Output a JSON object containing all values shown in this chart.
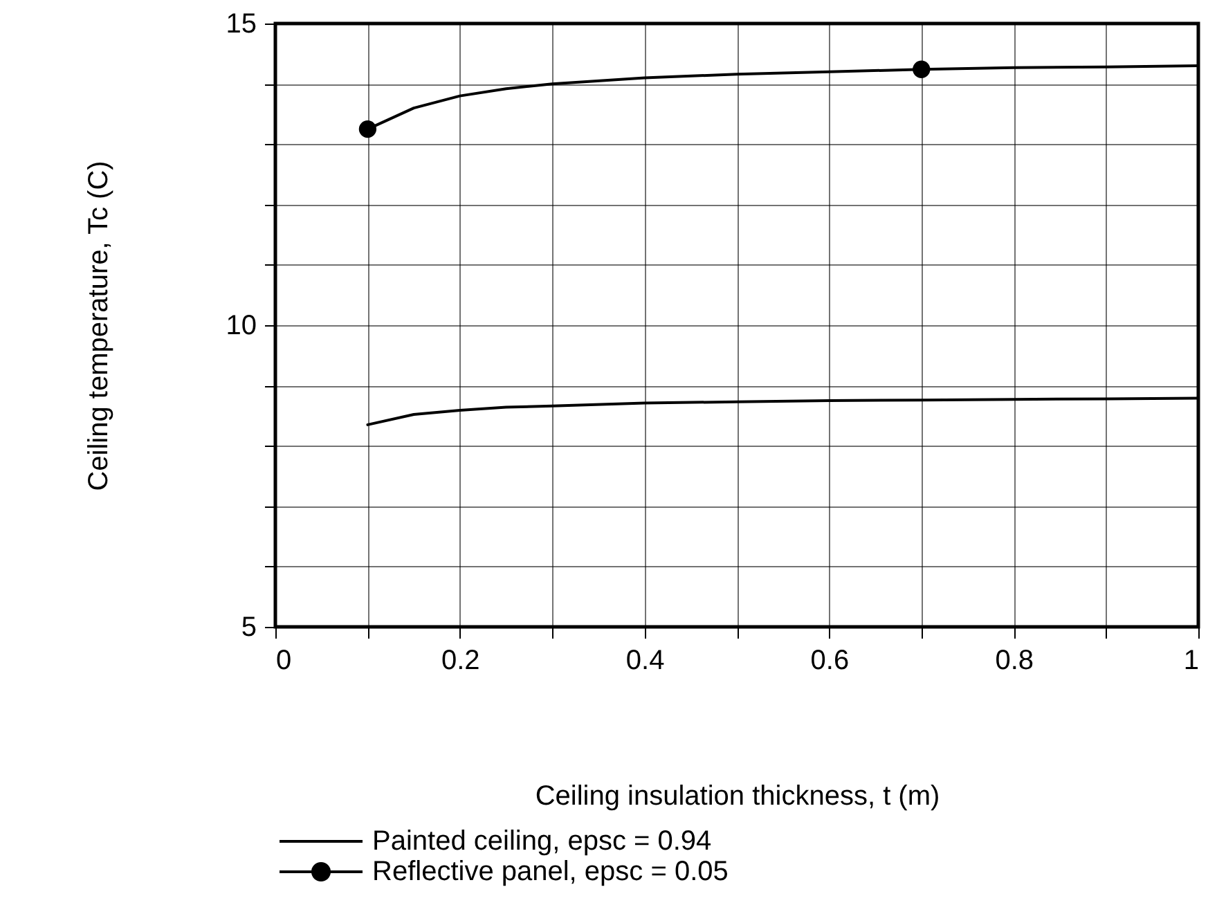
{
  "chart_data": {
    "type": "line",
    "xlabel": "Ceiling insulation thickness, t (m)",
    "ylabel": "Ceiling temperature, Tc (C)",
    "xlim": [
      0,
      1
    ],
    "ylim": [
      5,
      15
    ],
    "xticks": [
      0,
      {
        "value": 0.1,
        "label": null
      },
      0.2,
      {
        "value": 0.3,
        "label": null
      },
      0.4,
      {
        "value": 0.5,
        "label": null
      },
      0.6,
      {
        "value": 0.7,
        "label": null
      },
      0.8,
      {
        "value": 0.9,
        "label": null
      },
      1
    ],
    "yticks": [
      5,
      {
        "value": 6,
        "label": null
      },
      {
        "value": 7,
        "label": null
      },
      {
        "value": 8,
        "label": null
      },
      {
        "value": 9,
        "label": null
      },
      10,
      {
        "value": 11,
        "label": null
      },
      {
        "value": 12,
        "label": null
      },
      {
        "value": 13,
        "label": null
      },
      {
        "value": 14,
        "label": null
      },
      15
    ],
    "grid": true,
    "legend": "bottom left",
    "x": [
      0.1,
      0.15,
      0.2,
      0.25,
      0.3,
      0.4,
      0.5,
      0.6,
      0.7,
      0.8,
      0.9,
      1.0
    ],
    "series": [
      {
        "name": "Painted ceiling, epsc = 0.94",
        "color": "#000000",
        "values": [
          8.35,
          8.52,
          8.59,
          8.64,
          8.66,
          8.71,
          8.73,
          8.75,
          8.76,
          8.77,
          8.78,
          8.79
        ]
      },
      {
        "name": "Reflective panel, epsc = 0.05",
        "color": "#000000",
        "values": [
          13.25,
          13.6,
          13.8,
          13.92,
          14.0,
          14.1,
          14.16,
          14.2,
          14.24,
          14.27,
          14.28,
          14.3
        ]
      },
      {
        "type": "scatter",
        "color": "#000000",
        "marker": "circle",
        "x": [
          0.1,
          0.7
        ],
        "values": [
          13.25,
          14.24
        ]
      }
    ]
  }
}
